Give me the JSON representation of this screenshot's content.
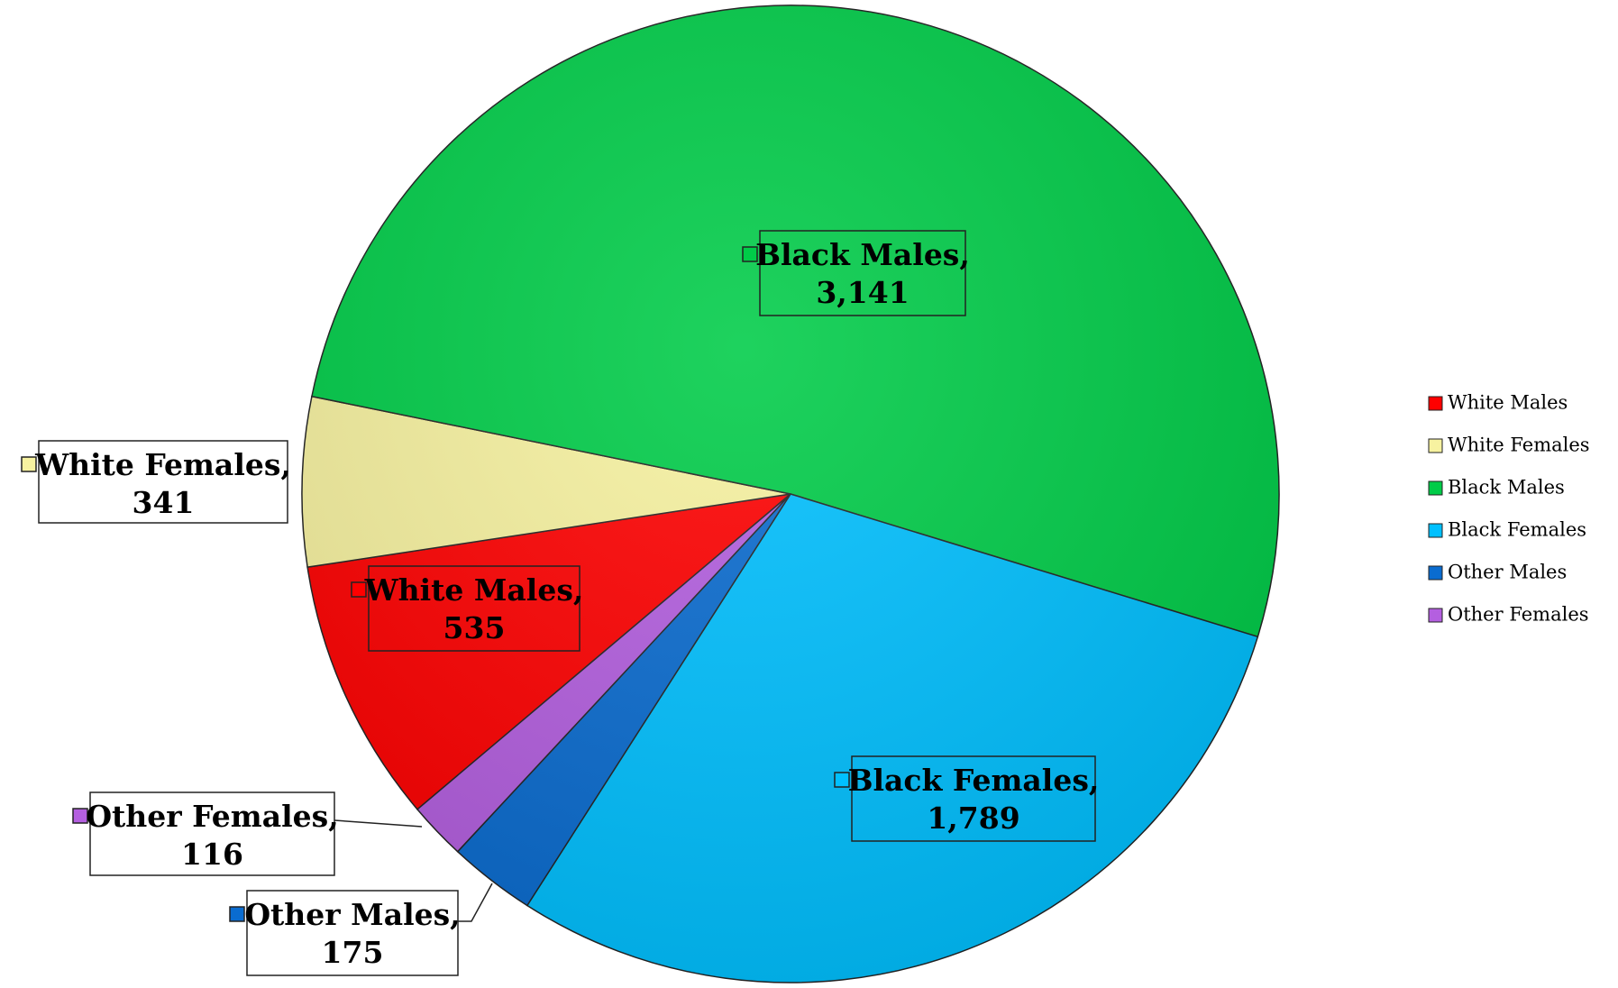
{
  "chart_data": {
    "type": "pie",
    "categories": [
      "White Males",
      "White Females",
      "Black Males",
      "Black Females",
      "Other Males",
      "Other Females"
    ],
    "values": [
      535,
      341,
      3141,
      1789,
      175,
      116
    ],
    "value_labels": [
      "535",
      "341",
      "3,141",
      "1,789",
      "175",
      "116"
    ],
    "label_texts": [
      "White Males,",
      "White Females,",
      "Black Males,",
      "Black Females,",
      "Other Males,",
      "Other Females,"
    ],
    "colors": [
      "#ff0000",
      "#f7f2a0",
      "#00cc48",
      "#00c0ff",
      "#0a6cd0",
      "#b45fe0"
    ],
    "legend": "right"
  }
}
